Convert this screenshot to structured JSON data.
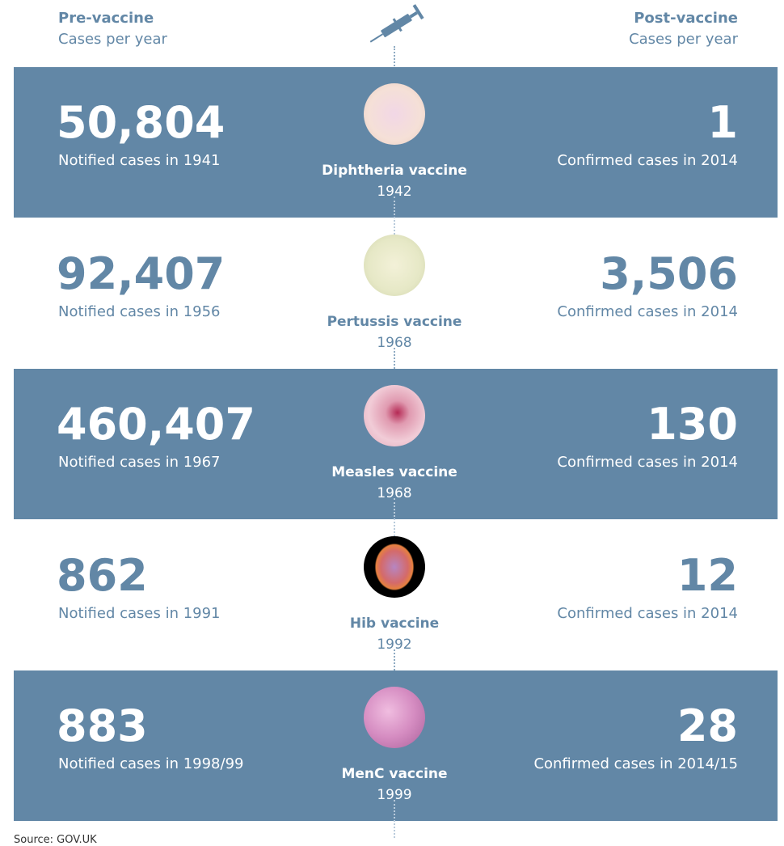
{
  "header": {
    "left_title": "Pre-vaccine",
    "left_subtitle": "Cases per year",
    "right_title": "Post-vaccine",
    "right_subtitle": "Cases per year"
  },
  "rows": [
    {
      "pre_cases": "50,804",
      "pre_note": "Notified cases in 1941",
      "vaccine": "Diphtheria vaccine",
      "year": "1942",
      "post_cases": "1",
      "post_note": "Confirmed cases in 2014"
    },
    {
      "pre_cases": "92,407",
      "pre_note": "Notified cases in 1956",
      "vaccine": "Pertussis vaccine",
      "year": "1968",
      "post_cases": "3,506",
      "post_note": "Confirmed cases in 2014"
    },
    {
      "pre_cases": "460,407",
      "pre_note": "Notified cases in 1967",
      "vaccine": "Measles vaccine",
      "year": "1968",
      "post_cases": "130",
      "post_note": "Confirmed cases in 2014"
    },
    {
      "pre_cases": "862",
      "pre_note": "Notified cases in 1991",
      "vaccine": "Hib vaccine",
      "year": "1992",
      "post_cases": "12",
      "post_note": "Confirmed cases in 2014"
    },
    {
      "pre_cases": "883",
      "pre_note": "Notified cases in 1998/99",
      "vaccine": "MenC vaccine",
      "year": "1999",
      "post_cases": "28",
      "post_note": "Confirmed cases in 2014/15"
    }
  ],
  "source": "Source: GOV.UK"
}
